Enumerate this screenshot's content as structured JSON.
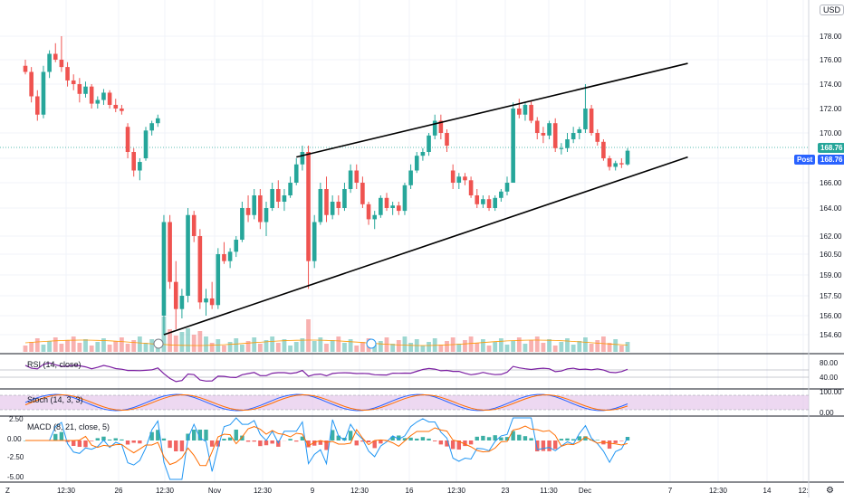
{
  "currency": "USD",
  "last_price": "168.76",
  "post_label": "Post",
  "post_price": "168.76",
  "colors": {
    "up": "#26a69a",
    "down": "#ef5350",
    "grid": "#f0f3fa",
    "rsi": "#7b1fa2",
    "stoch_k": "#2962ff",
    "stoch_d": "#ff6d00",
    "macd": "#2196f3",
    "signal": "#ff6d00",
    "volume_ma": "#ff9800",
    "trend": "#000000",
    "price_line": "#26a69a",
    "axis_text": "#131722"
  },
  "panes": {
    "rsi": {
      "label": "RSI (14, close)",
      "ticks": [
        "80.00",
        "40.00"
      ]
    },
    "stoch": {
      "label": "Stoch (14, 3, 3)",
      "ticks": [
        "100.00",
        "0.00"
      ]
    },
    "macd": {
      "label": "MACD (8, 21, close, 5)",
      "ticks": [
        "2.50",
        "0.00",
        "-2.50",
        "-5.00"
      ]
    }
  },
  "chart_data": {
    "type": "candlestick",
    "y_ticks": [
      "178.00",
      "176.00",
      "174.00",
      "172.00",
      "170.00",
      "168.00",
      "166.00",
      "164.00",
      "162.00",
      "160.50",
      "159.00",
      "157.50",
      "156.00",
      "154.60"
    ],
    "x_ticks": [
      "12:30",
      "26",
      "12:30",
      "Nov",
      "12:30",
      "9",
      "12:30",
      "16",
      "12:30",
      "23",
      "11:30",
      "Dec",
      "7",
      "12:30",
      "14",
      "12:"
    ],
    "candles": [
      {
        "o": 175.5,
        "h": 176.0,
        "l": 174.8,
        "c": 175.0
      },
      {
        "o": 175.0,
        "h": 175.4,
        "l": 172.5,
        "c": 173.0
      },
      {
        "o": 173.0,
        "h": 173.5,
        "l": 171.0,
        "c": 171.5
      },
      {
        "o": 171.5,
        "h": 175.5,
        "l": 171.2,
        "c": 175.0
      },
      {
        "o": 175.0,
        "h": 176.8,
        "l": 174.5,
        "c": 176.5
      },
      {
        "o": 176.5,
        "h": 177.4,
        "l": 175.8,
        "c": 176.0
      },
      {
        "o": 176.0,
        "h": 178.0,
        "l": 175.0,
        "c": 175.4
      },
      {
        "o": 175.4,
        "h": 175.8,
        "l": 173.8,
        "c": 174.3
      },
      {
        "o": 174.3,
        "h": 174.8,
        "l": 173.5,
        "c": 174.0
      },
      {
        "o": 174.0,
        "h": 174.5,
        "l": 172.5,
        "c": 173.2
      },
      {
        "o": 173.2,
        "h": 174.2,
        "l": 172.9,
        "c": 173.8
      },
      {
        "o": 173.8,
        "h": 174.0,
        "l": 172.0,
        "c": 172.4
      },
      {
        "o": 172.4,
        "h": 173.0,
        "l": 172.0,
        "c": 172.7
      },
      {
        "o": 172.7,
        "h": 173.6,
        "l": 172.3,
        "c": 173.3
      },
      {
        "o": 173.3,
        "h": 173.5,
        "l": 172.0,
        "c": 172.3
      },
      {
        "o": 172.3,
        "h": 172.8,
        "l": 171.7,
        "c": 172.0
      },
      {
        "o": 172.0,
        "h": 172.3,
        "l": 171.5,
        "c": 171.8
      },
      {
        "o": 170.5,
        "h": 170.8,
        "l": 168.0,
        "c": 168.5
      },
      {
        "o": 168.5,
        "h": 168.8,
        "l": 166.5,
        "c": 167.0
      },
      {
        "o": 167.0,
        "h": 168.0,
        "l": 166.2,
        "c": 167.7
      },
      {
        "o": 168.0,
        "h": 170.5,
        "l": 167.8,
        "c": 170.2
      },
      {
        "o": 170.2,
        "h": 171.0,
        "l": 169.8,
        "c": 170.8
      },
      {
        "o": 170.8,
        "h": 171.5,
        "l": 170.5,
        "c": 171.2
      },
      {
        "o": 156.0,
        "h": 163.5,
        "l": 154.6,
        "c": 163.0
      },
      {
        "o": 163.0,
        "h": 163.5,
        "l": 158.0,
        "c": 158.5
      },
      {
        "o": 158.5,
        "h": 160.0,
        "l": 155.0,
        "c": 156.5
      },
      {
        "o": 156.5,
        "h": 158.0,
        "l": 155.8,
        "c": 157.5
      },
      {
        "o": 157.5,
        "h": 164.0,
        "l": 157.0,
        "c": 163.5
      },
      {
        "o": 163.5,
        "h": 163.8,
        "l": 161.5,
        "c": 162.0
      },
      {
        "o": 162.0,
        "h": 162.5,
        "l": 156.5,
        "c": 157.0
      },
      {
        "o": 157.0,
        "h": 158.0,
        "l": 156.0,
        "c": 157.3
      },
      {
        "o": 157.3,
        "h": 158.5,
        "l": 156.5,
        "c": 156.8
      },
      {
        "o": 156.8,
        "h": 161.0,
        "l": 156.5,
        "c": 160.5
      },
      {
        "o": 160.5,
        "h": 161.5,
        "l": 159.8,
        "c": 160.0
      },
      {
        "o": 160.0,
        "h": 161.0,
        "l": 159.5,
        "c": 160.7
      },
      {
        "o": 160.7,
        "h": 162.0,
        "l": 160.3,
        "c": 161.7
      },
      {
        "o": 161.7,
        "h": 164.5,
        "l": 161.5,
        "c": 164.0
      },
      {
        "o": 164.0,
        "h": 165.0,
        "l": 163.0,
        "c": 163.5
      },
      {
        "o": 163.5,
        "h": 165.5,
        "l": 163.2,
        "c": 165.0
      },
      {
        "o": 165.0,
        "h": 165.5,
        "l": 162.5,
        "c": 163.0
      },
      {
        "o": 163.0,
        "h": 164.5,
        "l": 162.0,
        "c": 164.0
      },
      {
        "o": 164.0,
        "h": 166.0,
        "l": 163.8,
        "c": 165.5
      },
      {
        "o": 165.5,
        "h": 166.2,
        "l": 164.0,
        "c": 164.5
      },
      {
        "o": 164.5,
        "h": 165.5,
        "l": 163.8,
        "c": 165.0
      },
      {
        "o": 165.0,
        "h": 166.5,
        "l": 164.8,
        "c": 166.0
      },
      {
        "o": 166.0,
        "h": 168.0,
        "l": 165.8,
        "c": 167.5
      },
      {
        "o": 167.5,
        "h": 169.0,
        "l": 167.0,
        "c": 168.5
      },
      {
        "o": 168.5,
        "h": 169.0,
        "l": 158.0,
        "c": 160.0
      },
      {
        "o": 160.0,
        "h": 163.5,
        "l": 159.5,
        "c": 163.0
      },
      {
        "o": 163.0,
        "h": 166.0,
        "l": 162.8,
        "c": 165.5
      },
      {
        "o": 165.5,
        "h": 166.5,
        "l": 163.0,
        "c": 163.5
      },
      {
        "o": 163.5,
        "h": 165.0,
        "l": 163.2,
        "c": 164.5
      },
      {
        "o": 164.5,
        "h": 165.0,
        "l": 163.5,
        "c": 164.0
      },
      {
        "o": 164.0,
        "h": 166.0,
        "l": 163.8,
        "c": 165.5
      },
      {
        "o": 165.5,
        "h": 167.5,
        "l": 165.2,
        "c": 167.0
      },
      {
        "o": 167.0,
        "h": 167.5,
        "l": 165.5,
        "c": 166.0
      },
      {
        "o": 166.0,
        "h": 166.5,
        "l": 164.0,
        "c": 164.3
      },
      {
        "o": 164.3,
        "h": 164.5,
        "l": 162.8,
        "c": 163.2
      },
      {
        "o": 163.2,
        "h": 163.8,
        "l": 162.5,
        "c": 163.5
      },
      {
        "o": 163.5,
        "h": 165.0,
        "l": 163.3,
        "c": 164.8
      },
      {
        "o": 164.8,
        "h": 165.2,
        "l": 163.8,
        "c": 164.0
      },
      {
        "o": 164.0,
        "h": 164.5,
        "l": 163.5,
        "c": 164.2
      },
      {
        "o": 164.2,
        "h": 164.5,
        "l": 163.5,
        "c": 163.8
      },
      {
        "o": 163.8,
        "h": 166.0,
        "l": 163.5,
        "c": 165.8
      },
      {
        "o": 165.8,
        "h": 167.5,
        "l": 165.5,
        "c": 167.0
      },
      {
        "o": 167.0,
        "h": 168.5,
        "l": 166.8,
        "c": 168.2
      },
      {
        "o": 168.2,
        "h": 168.8,
        "l": 167.8,
        "c": 168.5
      },
      {
        "o": 168.5,
        "h": 170.0,
        "l": 168.2,
        "c": 169.8
      },
      {
        "o": 169.8,
        "h": 171.5,
        "l": 169.5,
        "c": 171.0
      },
      {
        "o": 171.0,
        "h": 171.5,
        "l": 169.5,
        "c": 170.0
      },
      {
        "o": 170.0,
        "h": 170.3,
        "l": 168.5,
        "c": 169.0
      },
      {
        "o": 167.0,
        "h": 167.5,
        "l": 165.5,
        "c": 166.0
      },
      {
        "o": 166.0,
        "h": 166.8,
        "l": 165.5,
        "c": 166.5
      },
      {
        "o": 166.5,
        "h": 166.8,
        "l": 165.8,
        "c": 166.2
      },
      {
        "o": 166.2,
        "h": 166.5,
        "l": 164.8,
        "c": 165.0
      },
      {
        "o": 165.0,
        "h": 165.5,
        "l": 164.0,
        "c": 164.3
      },
      {
        "o": 164.3,
        "h": 165.0,
        "l": 164.0,
        "c": 164.7
      },
      {
        "o": 164.7,
        "h": 165.0,
        "l": 163.8,
        "c": 164.0
      },
      {
        "o": 164.0,
        "h": 165.0,
        "l": 163.8,
        "c": 164.8
      },
      {
        "o": 164.8,
        "h": 165.5,
        "l": 164.5,
        "c": 165.3
      },
      {
        "o": 165.3,
        "h": 166.5,
        "l": 165.0,
        "c": 166.0
      },
      {
        "o": 166.0,
        "h": 172.5,
        "l": 166.0,
        "c": 172.0
      },
      {
        "o": 172.0,
        "h": 172.8,
        "l": 171.2,
        "c": 171.5
      },
      {
        "o": 171.5,
        "h": 172.5,
        "l": 171.0,
        "c": 172.3
      },
      {
        "o": 172.3,
        "h": 172.6,
        "l": 170.8,
        "c": 171.0
      },
      {
        "o": 171.0,
        "h": 171.3,
        "l": 169.5,
        "c": 170.0
      },
      {
        "o": 170.0,
        "h": 170.5,
        "l": 169.2,
        "c": 169.8
      },
      {
        "o": 169.8,
        "h": 171.0,
        "l": 169.5,
        "c": 170.8
      },
      {
        "o": 170.8,
        "h": 171.2,
        "l": 168.5,
        "c": 168.8
      },
      {
        "o": 168.8,
        "h": 169.2,
        "l": 168.3,
        "c": 168.8
      },
      {
        "o": 168.8,
        "h": 170.0,
        "l": 168.5,
        "c": 169.5
      },
      {
        "o": 169.5,
        "h": 170.5,
        "l": 169.2,
        "c": 170.0
      },
      {
        "o": 170.0,
        "h": 170.5,
        "l": 169.5,
        "c": 170.3
      },
      {
        "o": 170.3,
        "h": 174.0,
        "l": 170.0,
        "c": 172.0
      },
      {
        "o": 172.0,
        "h": 172.3,
        "l": 169.8,
        "c": 170.0
      },
      {
        "o": 170.0,
        "h": 170.3,
        "l": 169.0,
        "c": 169.3
      },
      {
        "o": 169.3,
        "h": 169.5,
        "l": 167.8,
        "c": 168.0
      },
      {
        "o": 168.0,
        "h": 168.2,
        "l": 167.0,
        "c": 167.3
      },
      {
        "o": 167.3,
        "h": 167.8,
        "l": 167.0,
        "c": 167.6
      },
      {
        "o": 167.6,
        "h": 168.0,
        "l": 167.2,
        "c": 167.5
      },
      {
        "o": 167.5,
        "h": 168.8,
        "l": 167.4,
        "c": 168.6
      }
    ],
    "trendlines": [
      {
        "name": "upper-channel",
        "from": {
          "i": 45,
          "p": 168.1
        },
        "to": {
          "i": 110,
          "p": 175.7
        }
      },
      {
        "name": "lower-channel",
        "from": {
          "i": 23,
          "p": 154.6
        },
        "to": {
          "i": 110,
          "p": 168.1
        }
      }
    ]
  }
}
